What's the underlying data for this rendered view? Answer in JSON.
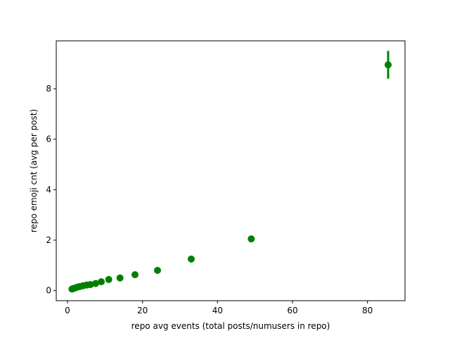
{
  "chart_data": {
    "type": "scatter",
    "title": "",
    "xlabel": "repo avg events (total posts/numusers in repo)",
    "ylabel": "repo emoji cnt   (avg per post)",
    "xlim": [
      -3,
      90
    ],
    "ylim": [
      -0.4,
      9.9
    ],
    "xticks": [
      0,
      20,
      40,
      60,
      80
    ],
    "yticks": [
      0,
      2,
      4,
      6,
      8
    ],
    "x_tick_labels": [
      "0",
      "20",
      "40",
      "60",
      "80"
    ],
    "y_tick_labels": [
      "0",
      "2",
      "4",
      "6",
      "8"
    ],
    "grid": false,
    "legend": "none",
    "color": "#008000",
    "series": [
      {
        "points": [
          {
            "x": 1.2,
            "y": 0.06,
            "err": 0.02
          },
          {
            "x": 1.5,
            "y": 0.08,
            "err": 0.02
          },
          {
            "x": 2.0,
            "y": 0.1,
            "err": 0.02
          },
          {
            "x": 2.5,
            "y": 0.13,
            "err": 0.02
          },
          {
            "x": 3.2,
            "y": 0.16,
            "err": 0.02
          },
          {
            "x": 4.1,
            "y": 0.19,
            "err": 0.02
          },
          {
            "x": 5.1,
            "y": 0.22,
            "err": 0.02
          },
          {
            "x": 6.1,
            "y": 0.24,
            "err": 0.02
          },
          {
            "x": 7.5,
            "y": 0.28,
            "err": 0.02
          },
          {
            "x": 9.0,
            "y": 0.35,
            "err": 0.02
          },
          {
            "x": 11.0,
            "y": 0.44,
            "err": 0.02
          },
          {
            "x": 14.0,
            "y": 0.5,
            "err": 0.03
          },
          {
            "x": 18.0,
            "y": 0.63,
            "err": 0.03
          },
          {
            "x": 24.0,
            "y": 0.8,
            "err": 0.03
          },
          {
            "x": 33.0,
            "y": 1.25,
            "err": 0.04
          },
          {
            "x": 49.0,
            "y": 2.05,
            "err": 0.05
          },
          {
            "x": 85.5,
            "y": 8.95,
            "err": 0.55
          }
        ]
      }
    ]
  }
}
